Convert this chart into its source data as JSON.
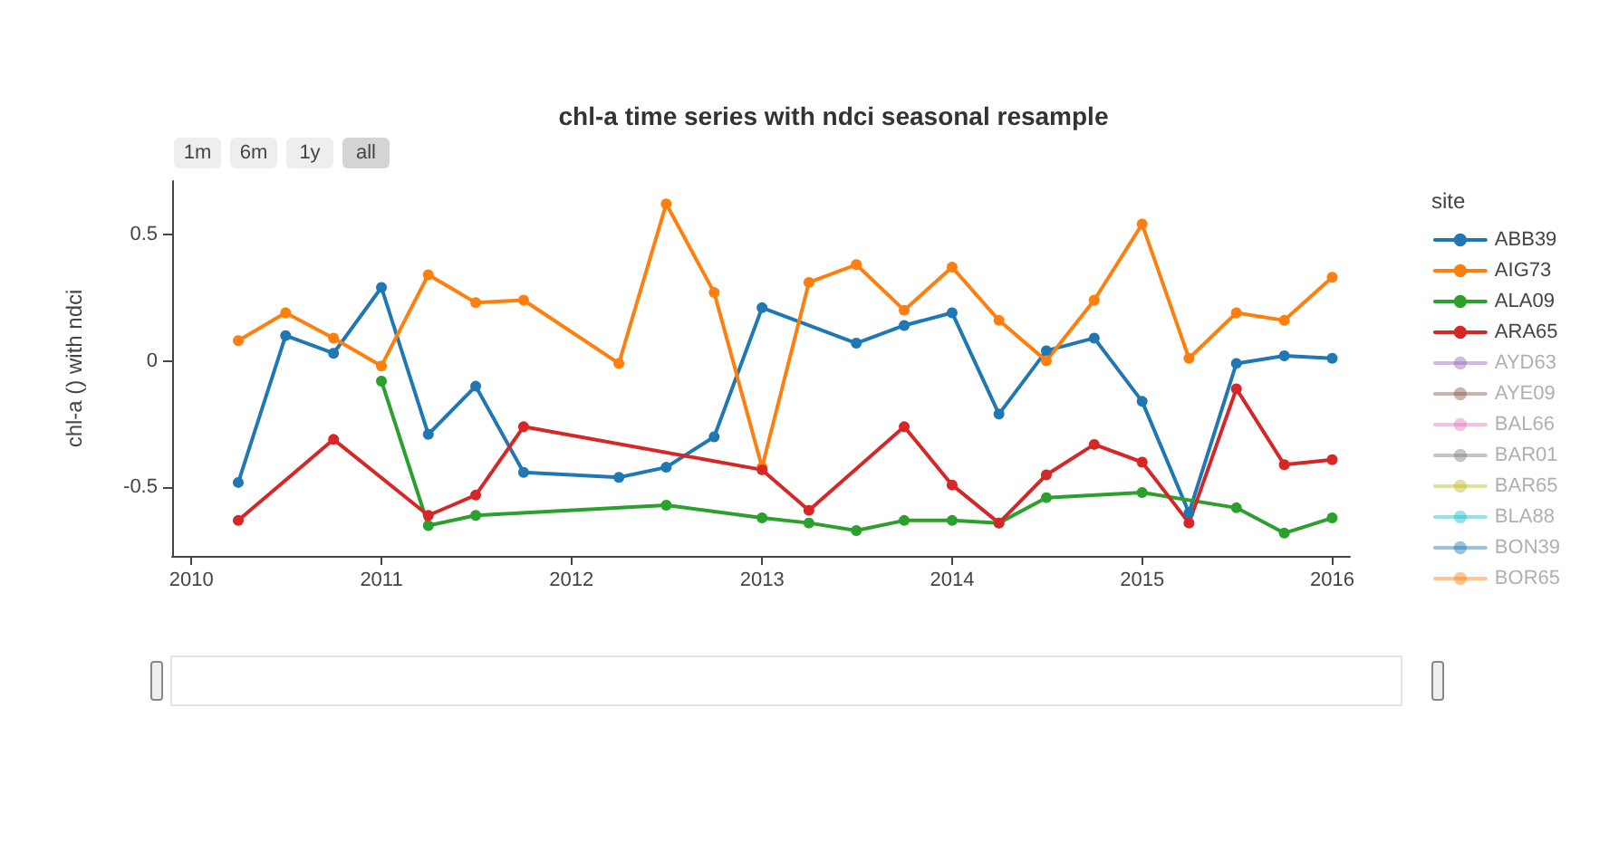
{
  "chart_data": {
    "type": "line",
    "title": "chl-a time series with ndci seasonal resample",
    "ylabel": "chl-a () with ndci",
    "legend_title": "site",
    "legend": "right",
    "grid": false,
    "marker": "circle",
    "line_style": "solid",
    "annotations": [
      "1m",
      "6m",
      "1y",
      "all"
    ],
    "xlim": [
      "2009-11-25",
      "2016-02-04"
    ],
    "xticks": [
      "2010",
      "2011",
      "2012",
      "2013",
      "2014",
      "2015",
      "2016"
    ],
    "ylim": [
      -0.77,
      0.71
    ],
    "yticks": [
      -0.5,
      0,
      0.5
    ],
    "series": [
      {
        "name": "ABB39",
        "color": "#1f77b4",
        "x": [
          "2010-04",
          "2010-07",
          "2010-10",
          "2011-01",
          "2011-04",
          "2011-07",
          "2011-10",
          "2012-04",
          "2012-07",
          "2012-10",
          "2013-01",
          "2013-07",
          "2013-10",
          "2014-01",
          "2014-04",
          "2014-07",
          "2014-10",
          "2015-01",
          "2015-04",
          "2015-07",
          "2015-10",
          "2016-01"
        ],
        "values": [
          -0.48,
          0.1,
          0.03,
          0.29,
          -0.29,
          -0.1,
          -0.44,
          -0.46,
          -0.42,
          -0.3,
          0.21,
          0.07,
          0.14,
          0.19,
          -0.21,
          0.04,
          0.09,
          -0.16,
          -0.6,
          -0.01,
          0.02,
          0.01
        ]
      },
      {
        "name": "AIG73",
        "color": "#ff7f0e",
        "x": [
          "2010-04",
          "2010-07",
          "2010-10",
          "2011-01",
          "2011-04",
          "2011-07",
          "2011-10",
          "2012-04",
          "2012-07",
          "2012-10",
          "2013-01",
          "2013-04",
          "2013-07",
          "2013-10",
          "2014-01",
          "2014-04",
          "2014-07",
          "2014-10",
          "2015-01",
          "2015-04",
          "2015-07",
          "2015-10",
          "2016-01"
        ],
        "values": [
          0.08,
          0.19,
          0.09,
          -0.02,
          0.34,
          0.23,
          0.24,
          -0.01,
          0.62,
          0.27,
          -0.42,
          0.31,
          0.38,
          0.2,
          0.37,
          0.16,
          0.0,
          0.24,
          0.54,
          0.01,
          0.19,
          0.16,
          0.33
        ]
      },
      {
        "name": "ALA09",
        "color": "#2ca02c",
        "x": [
          "2011-01",
          "2011-04",
          "2011-07",
          "2012-07",
          "2013-01",
          "2013-04",
          "2013-07",
          "2013-10",
          "2014-01",
          "2014-04",
          "2014-07",
          "2015-01",
          "2015-07",
          "2015-10",
          "2016-01"
        ],
        "values": [
          -0.08,
          -0.65,
          -0.61,
          -0.57,
          -0.62,
          -0.64,
          -0.67,
          -0.63,
          -0.63,
          -0.64,
          -0.54,
          -0.52,
          -0.58,
          -0.68,
          -0.62
        ]
      },
      {
        "name": "ARA65",
        "color": "#d62728",
        "x": [
          "2010-04",
          "2010-10",
          "2011-04",
          "2011-07",
          "2011-10",
          "2013-01",
          "2013-04",
          "2013-10",
          "2014-01",
          "2014-04",
          "2014-07",
          "2014-10",
          "2015-01",
          "2015-04",
          "2015-07",
          "2015-10",
          "2016-01"
        ],
        "values": [
          -0.63,
          -0.31,
          -0.61,
          -0.53,
          -0.26,
          -0.43,
          -0.59,
          -0.26,
          -0.49,
          -0.64,
          -0.45,
          -0.33,
          -0.4,
          -0.64,
          -0.11,
          -0.41,
          -0.39
        ]
      },
      {
        "name": "AYD63",
        "color": "#9467bd"
      },
      {
        "name": "AYE09",
        "color": "#8c564b"
      },
      {
        "name": "BAL66",
        "color": "#e377c2"
      },
      {
        "name": "BAR01",
        "color": "#7f7f7f"
      },
      {
        "name": "BAR65",
        "color": "#bcbd22"
      },
      {
        "name": "BLA88",
        "color": "#17becf"
      },
      {
        "name": "BON39",
        "color": "#1f77b4"
      },
      {
        "name": "BOR65",
        "color": "#ff7f0e"
      }
    ]
  }
}
